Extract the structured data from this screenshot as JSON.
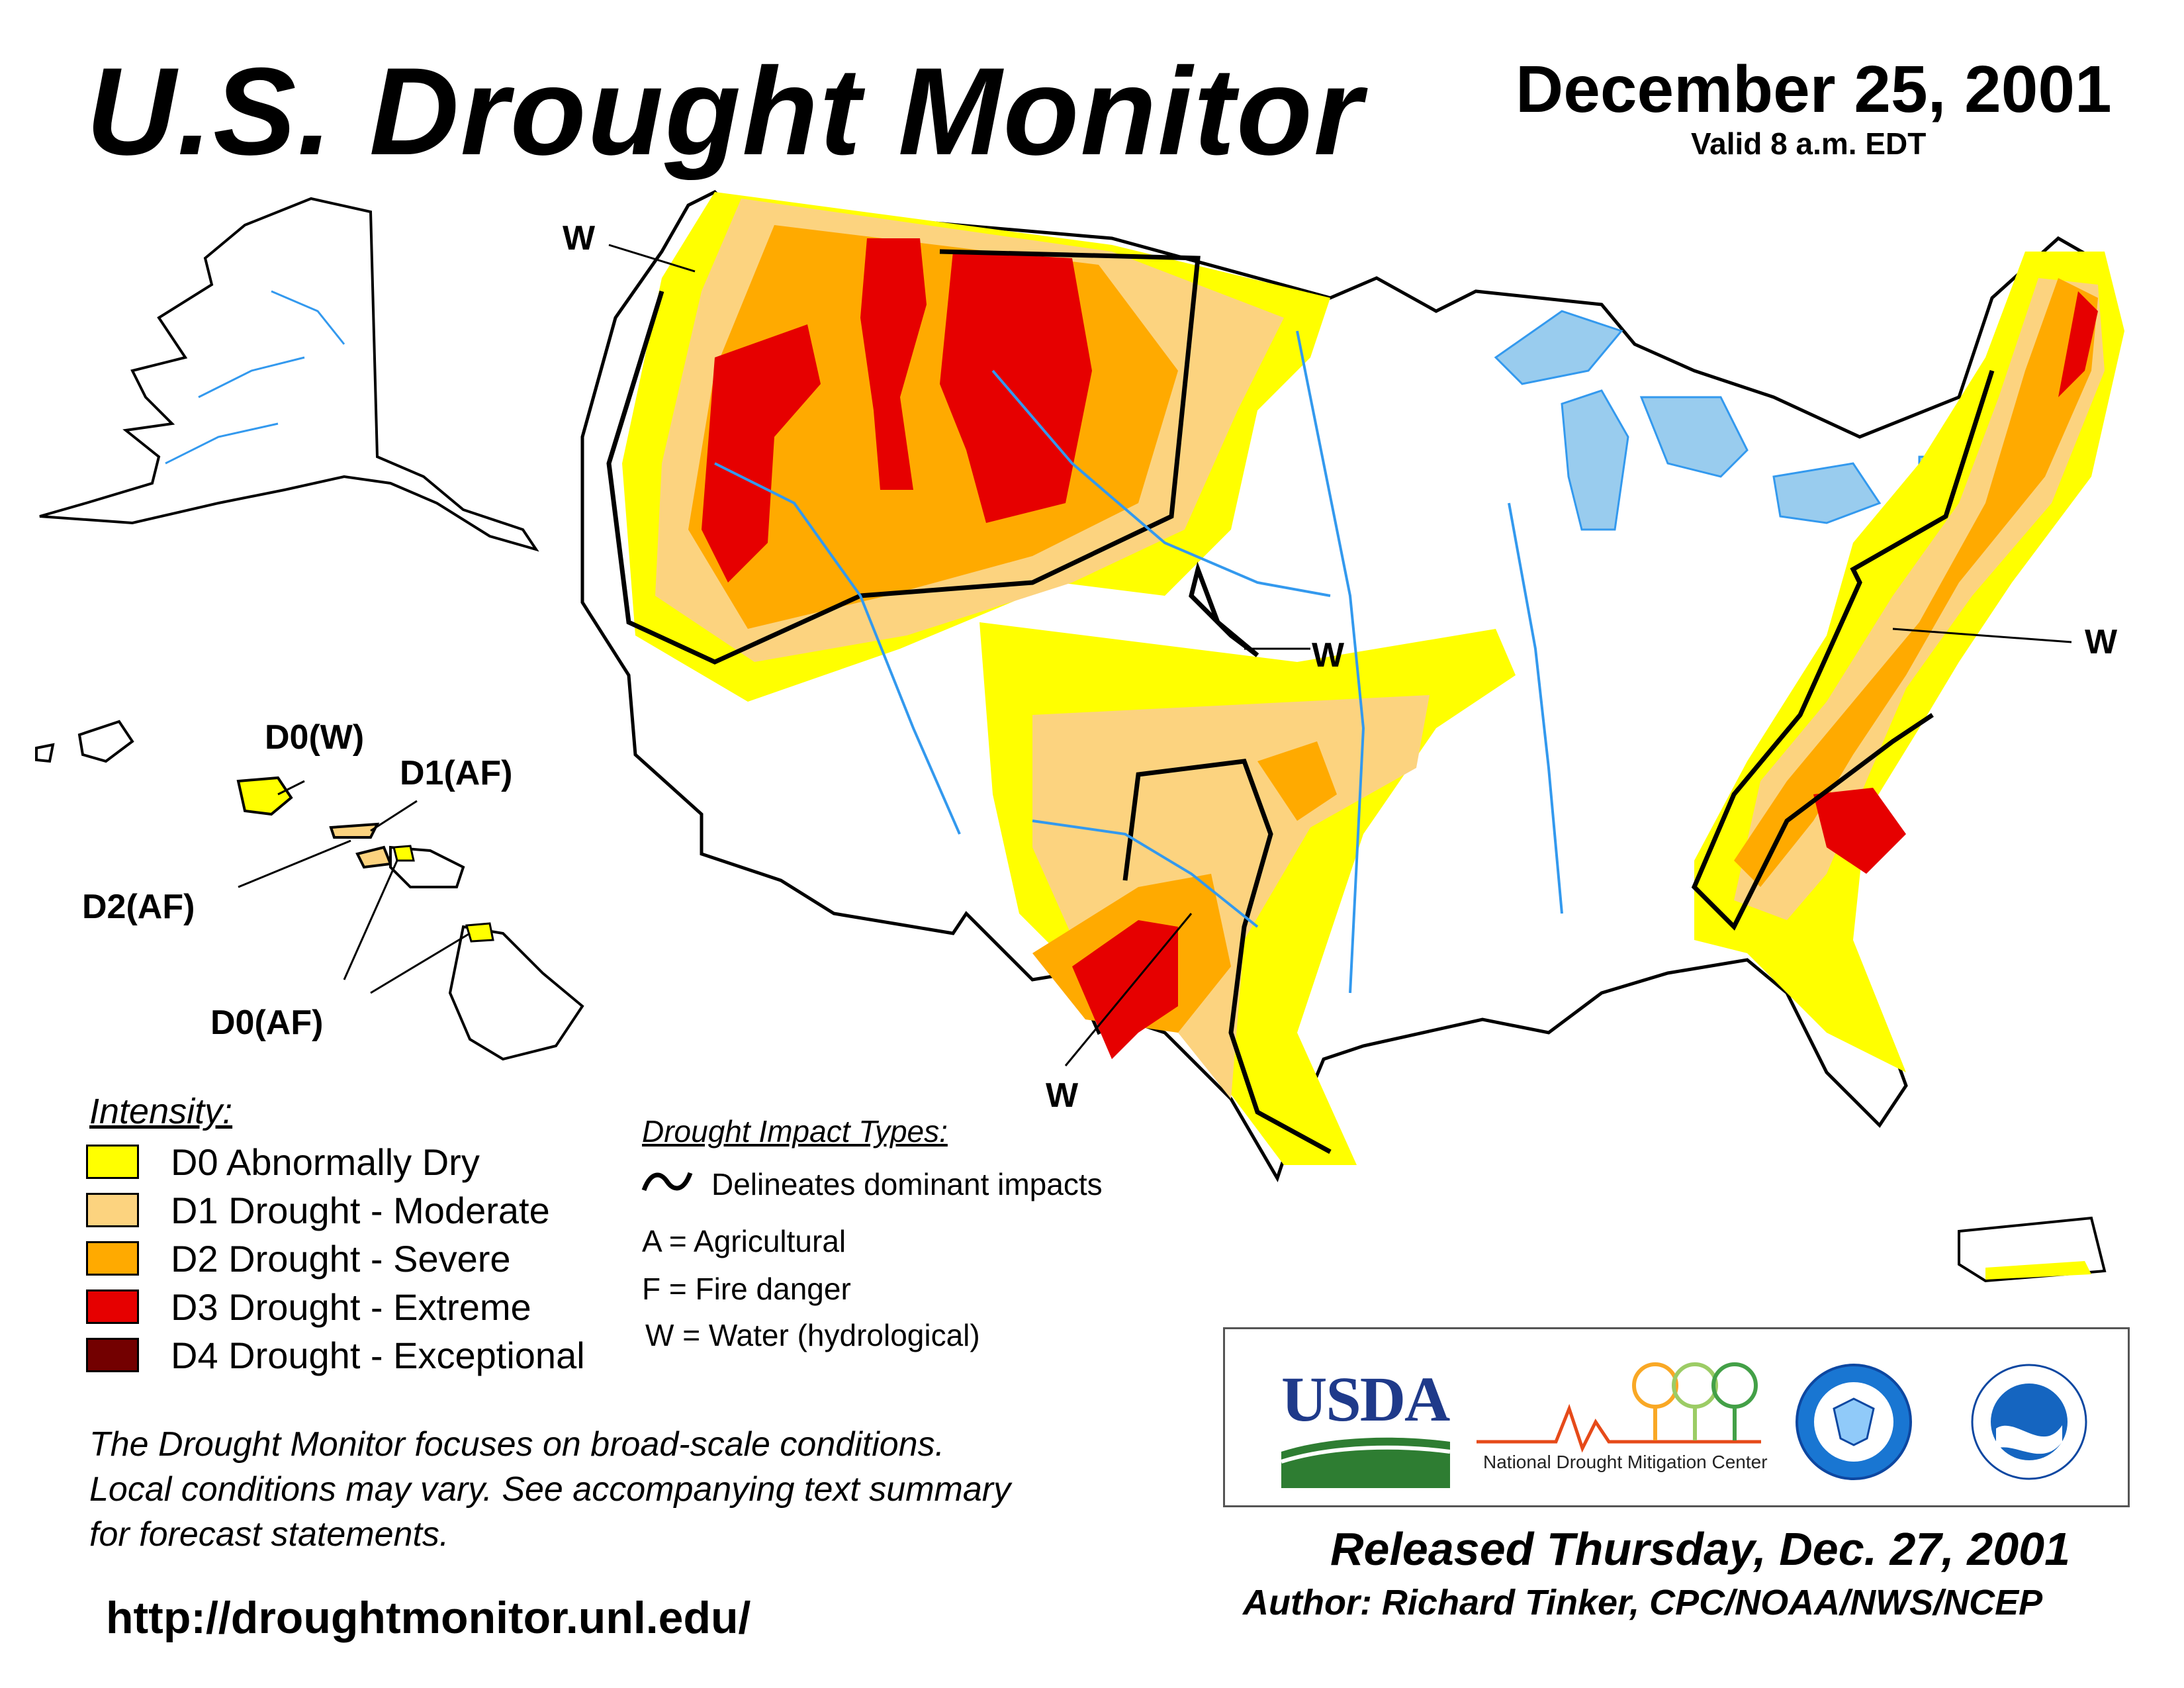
{
  "header": {
    "title": "U.S. Drought Monitor",
    "date": "December 25, 2001",
    "valid": "Valid 8 a.m. EDT"
  },
  "map": {
    "hawaii_labels": [
      "D0(W)",
      "D1(AF)",
      "D2(AF)",
      "D0(AF)"
    ],
    "impact_labels": [
      "W",
      "W",
      "W",
      "W"
    ]
  },
  "legend": {
    "title": "Intensity:",
    "items": [
      {
        "code": "D0",
        "label": "D0 Abnormally Dry",
        "color": "#ffff00"
      },
      {
        "code": "D1",
        "label": "D1 Drought - Moderate",
        "color": "#fcd37f"
      },
      {
        "code": "D2",
        "label": "D2 Drought - Severe",
        "color": "#ffaa00"
      },
      {
        "code": "D3",
        "label": "D3 Drought - Extreme",
        "color": "#e60000"
      },
      {
        "code": "D4",
        "label": "D4 Drought - Exceptional",
        "color": "#730000"
      }
    ]
  },
  "impacts": {
    "title": "Drought Impact Types:",
    "line_desc": "Delineates dominant impacts",
    "types": [
      "A = Agricultural",
      "F = Fire danger",
      "W = Water (hydrological)"
    ]
  },
  "disclaimer": [
    "The Drought Monitor focuses on broad-scale conditions.",
    "Local conditions may vary. See accompanying text summary",
    "for forecast statements."
  ],
  "url": "http://droughtmonitor.unl.edu/",
  "logos": {
    "usda": "USDA",
    "ndmc": "National  Drought Mitigation Center"
  },
  "footer": {
    "released": "Released Thursday, Dec. 27, 2001",
    "author": "Author: Richard Tinker, CPC/NOAA/NWS/NCEP"
  },
  "colors": {
    "d0": "#ffff00",
    "d1": "#fcd37f",
    "d2": "#ffaa00",
    "d3": "#e60000",
    "d4": "#730000",
    "water": "#99ccee",
    "river": "#3399ee"
  }
}
